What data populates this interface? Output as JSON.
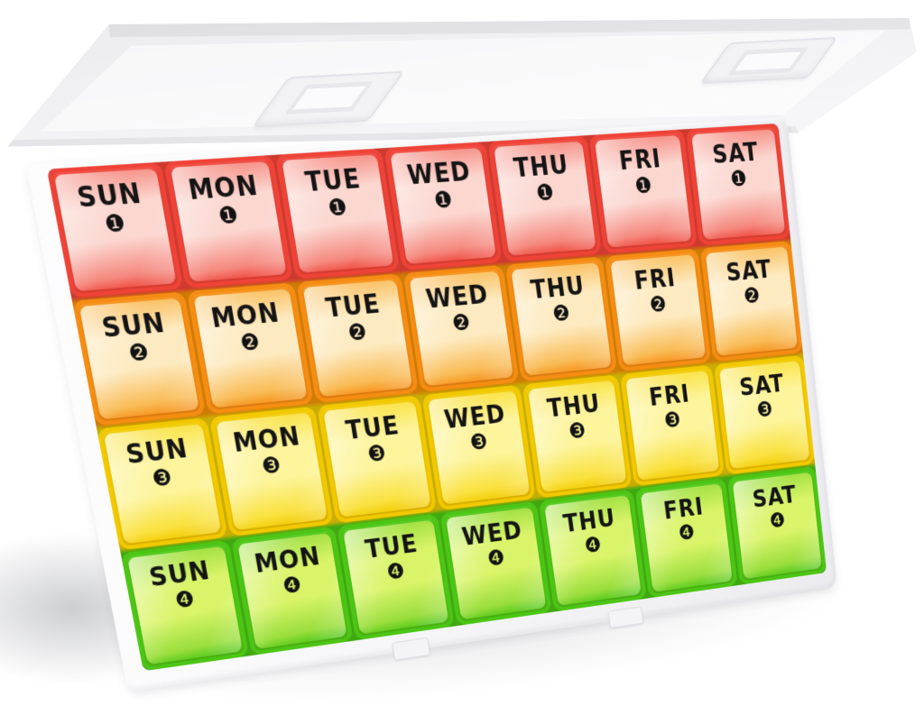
{
  "product": {
    "name": "monthly-pill-organizer",
    "description": "Open monthly pill organizer case with clear lid, 4 weekly rows of 7 daily compartments",
    "case_color": "#f4f4f6",
    "text_color": "#141414"
  },
  "organizer": {
    "days": [
      "SUN",
      "MON",
      "TUE",
      "WED",
      "THU",
      "FRI",
      "SAT"
    ],
    "weeks": [
      {
        "week": "1",
        "badge": "❶",
        "colors": {
          "edge": "#ef4338",
          "mid": "#f5887e",
          "light": "#fbd7d0"
        }
      },
      {
        "week": "2",
        "badge": "❷",
        "colors": {
          "edge": "#f68d13",
          "mid": "#f9bb55",
          "light": "#fdeac0"
        }
      },
      {
        "week": "3",
        "badge": "❸",
        "colors": {
          "edge": "#f2c900",
          "mid": "#f9e13d",
          "light": "#fdf49c"
        }
      },
      {
        "week": "4",
        "badge": "❹",
        "colors": {
          "edge": "#4cc614",
          "mid": "#9ade3d",
          "light": "#d9f468"
        }
      }
    ]
  }
}
